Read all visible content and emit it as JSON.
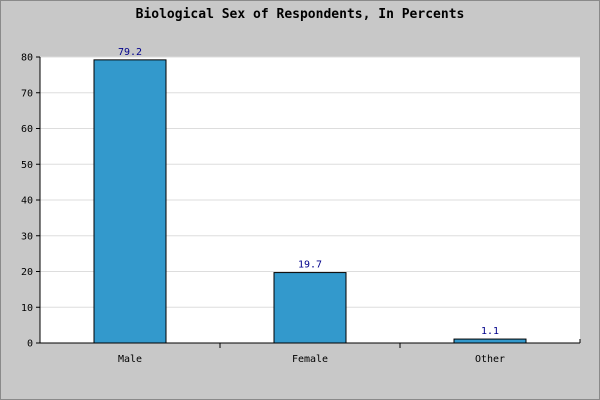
{
  "chart_data": {
    "type": "bar",
    "title": "Biological Sex of Respondents, In Percents",
    "categories": [
      "Male",
      "Female",
      "Other"
    ],
    "values": [
      79.2,
      19.7,
      1.1
    ],
    "value_labels": [
      "79.2",
      "19.7",
      "1.1"
    ],
    "xlabel": "",
    "ylabel": "",
    "ylim": [
      0,
      80
    ],
    "yticks": [
      0,
      10,
      20,
      30,
      40,
      50,
      60,
      70,
      80
    ],
    "grid": true,
    "legend": "none",
    "colors": {
      "bar": "#3399cc",
      "bar_outline": "#000000",
      "plot_bg": "#ffffff",
      "outer_bg": "#c8c8c8",
      "grid": "#dddddd",
      "data_label": "#00008b"
    }
  }
}
